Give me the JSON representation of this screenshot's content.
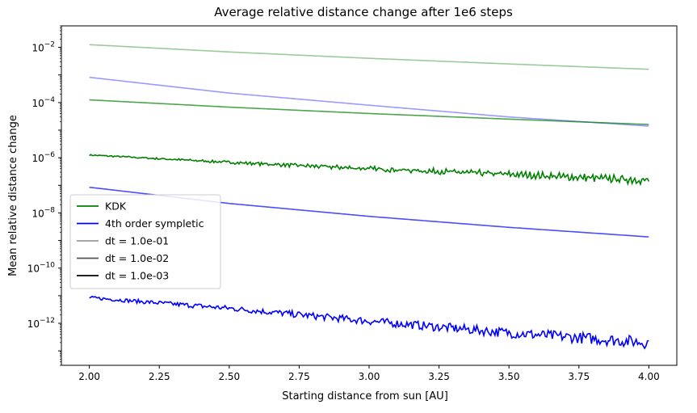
{
  "chart_data": {
    "type": "line",
    "title": "Average relative distance change after 1e6 steps",
    "xlabel": "Starting distance from sun [AU]",
    "ylabel": "Mean relative distance change",
    "xlim": [
      1.9,
      4.1
    ],
    "ylim": [
      3e-14,
      0.06
    ],
    "yscale": "log",
    "grid": false,
    "legend_position": "center-left",
    "x_ticks": [
      {
        "value": 2.0,
        "label": "2.00"
      },
      {
        "value": 2.25,
        "label": "2.25"
      },
      {
        "value": 2.5,
        "label": "2.50"
      },
      {
        "value": 2.75,
        "label": "2.75"
      },
      {
        "value": 3.0,
        "label": "3.00"
      },
      {
        "value": 3.25,
        "label": "3.25"
      },
      {
        "value": 3.5,
        "label": "3.50"
      },
      {
        "value": 3.75,
        "label": "3.75"
      },
      {
        "value": 4.0,
        "label": "4.00"
      }
    ],
    "y_ticks": [
      {
        "exponent": -12,
        "label": "10",
        "sup": "−12"
      },
      {
        "exponent": -10,
        "label": "10",
        "sup": "−10"
      },
      {
        "exponent": -8,
        "label": "10",
        "sup": "−8"
      },
      {
        "exponent": -6,
        "label": "10",
        "sup": "−6"
      },
      {
        "exponent": -4,
        "label": "10",
        "sup": "−4"
      },
      {
        "exponent": -2,
        "label": "10",
        "sup": "−2"
      }
    ],
    "legend": [
      {
        "label": "KDK",
        "color": "#008000"
      },
      {
        "label": "4th order sympletic",
        "color": "#0000ff"
      },
      {
        "label": "dt = 1.0e-01",
        "color": "#999999"
      },
      {
        "label": "dt = 1.0e-02",
        "color": "#555555"
      },
      {
        "label": "dt = 1.0e-03",
        "color": "#000000"
      }
    ],
    "series": [
      {
        "method": "KDK",
        "dt": "1.0e-01",
        "color": "#008000",
        "opacity": 0.4,
        "noise": 0,
        "x": [
          2.0,
          2.5,
          3.0,
          3.5,
          4.0
        ],
        "y": [
          0.0125,
          0.0068,
          0.004,
          0.0025,
          0.0016
        ]
      },
      {
        "method": "4th order sympletic",
        "dt": "1.0e-01",
        "color": "#0000ff",
        "opacity": 0.4,
        "noise": 0,
        "x": [
          2.0,
          2.5,
          3.0,
          3.5,
          4.0
        ],
        "y": [
          0.00082,
          0.00022,
          8e-05,
          3e-05,
          1.4e-05
        ]
      },
      {
        "method": "KDK",
        "dt": "1.0e-02",
        "color": "#008000",
        "opacity": 0.7,
        "noise": 0,
        "x": [
          2.0,
          2.5,
          3.0,
          3.5,
          4.0
        ],
        "y": [
          0.000125,
          6.8e-05,
          4e-05,
          2.5e-05,
          1.6e-05
        ]
      },
      {
        "method": "KDK",
        "dt": "1.0e-03",
        "color": "#008000",
        "opacity": 1.0,
        "noise": 0.06,
        "x": [
          2.0,
          2.5,
          3.0,
          3.5,
          4.0
        ],
        "y": [
          1.25e-06,
          6.8e-07,
          4e-07,
          2.5e-07,
          1.5e-07
        ]
      },
      {
        "method": "4th order sympletic",
        "dt": "1.0e-02",
        "color": "#0000ff",
        "opacity": 0.7,
        "noise": 0,
        "x": [
          2.0,
          2.5,
          3.0,
          3.5,
          4.0
        ],
        "y": [
          8.5e-08,
          2.2e-08,
          7.5e-09,
          3e-09,
          1.35e-09
        ]
      },
      {
        "method": "4th order sympletic",
        "dt": "1.0e-03",
        "color": "#0000ff",
        "opacity": 1.0,
        "noise": 0.14,
        "x": [
          2.0,
          2.5,
          3.0,
          3.5,
          4.0
        ],
        "y": [
          8.5e-12,
          3.5e-12,
          1.2e-12,
          4.5e-13,
          2e-13
        ]
      }
    ]
  }
}
